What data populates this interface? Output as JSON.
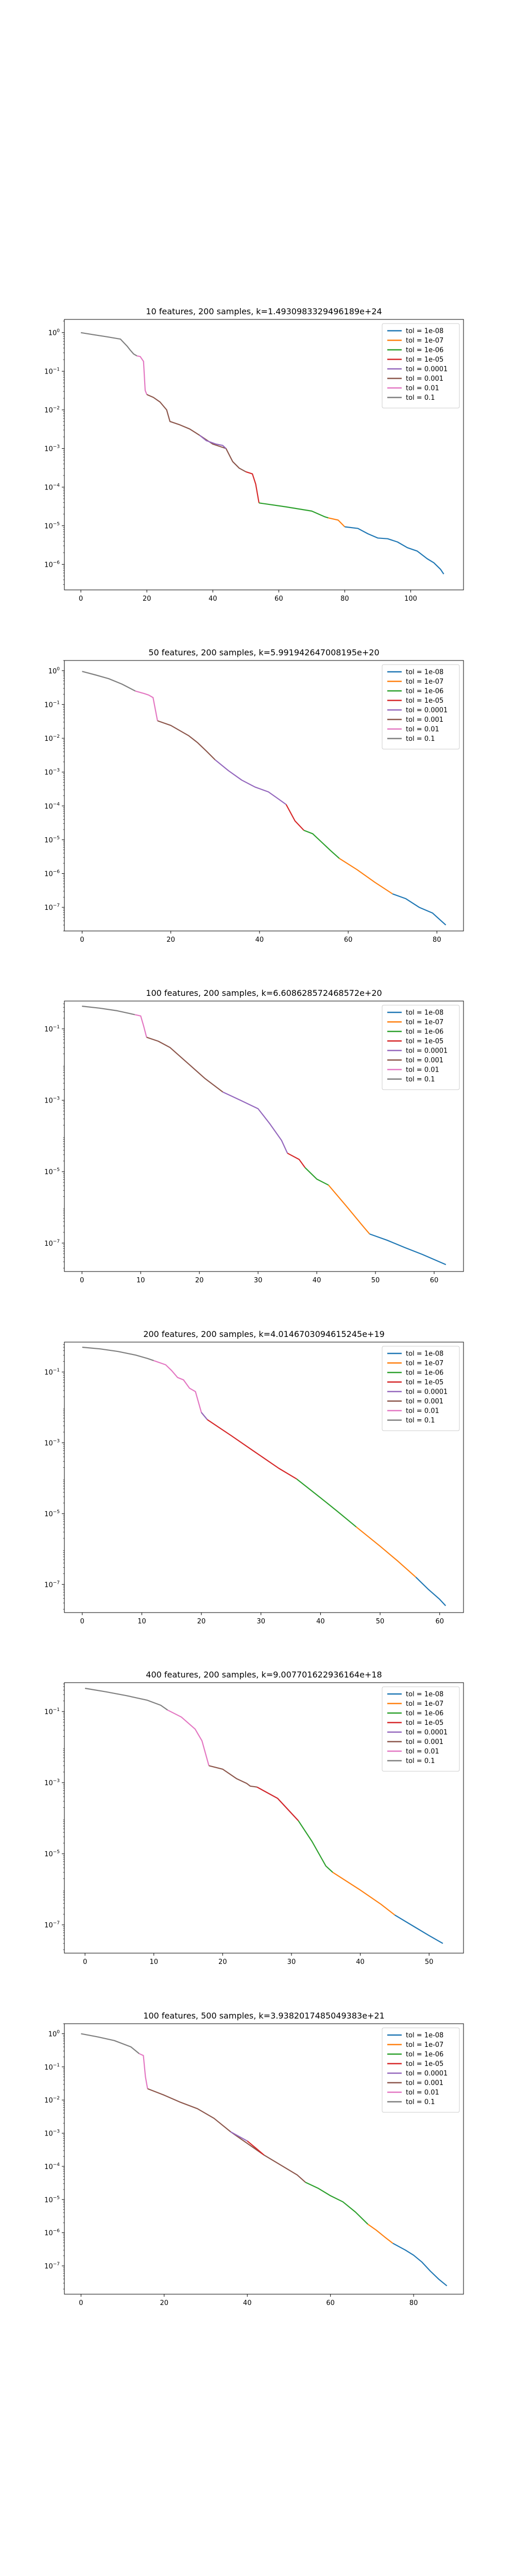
{
  "figure": {
    "legend_placement": "top-right",
    "y_scale": "log",
    "grid": false,
    "tol_colors": [
      "#1f77b4",
      "#ff7f0e",
      "#2ca02c",
      "#d62728",
      "#9467bd",
      "#8c564b",
      "#e377c2",
      "#7f7f7f"
    ]
  },
  "chart_data": [
    {
      "type": "line",
      "title": "10 features, 200 samples, k=1.4930983329496189e+24",
      "xlabel": "",
      "ylabel": "",
      "xlim": [
        -5,
        116
      ],
      "xticks": [
        0,
        20,
        40,
        60,
        80,
        100
      ],
      "xtick_labels": [
        "0",
        "20",
        "40",
        "60",
        "80",
        "100"
      ],
      "ylim": [
        2.18e-07,
        2.2
      ],
      "yticks": [
        1,
        0.1,
        0.01,
        0.001,
        0.0001,
        1e-05,
        1e-06
      ],
      "ytick_labels": [
        "10^0",
        "10^-1",
        "10^-2",
        "10^-3",
        "10^-4",
        "10^-5",
        "10^-6"
      ],
      "series": [
        {
          "name": "tol = 1e-08",
          "x": [
            80,
            84,
            87,
            90,
            93,
            96,
            99,
            102,
            105,
            107,
            109,
            110
          ],
          "y": [
            9.4e-06,
            8.5e-06,
            6.2e-06,
            4.8e-06,
            4.6e-06,
            3.8e-06,
            2.7e-06,
            2.2e-06,
            1.4e-06,
            1.1e-06,
            7.5e-07,
            5.6e-07
          ]
        },
        {
          "name": "tol = 1e-07",
          "x": [
            75,
            78,
            80
          ],
          "y": [
            1.6e-05,
            1.4e-05,
            9.4e-06
          ]
        },
        {
          "name": "tol = 1e-06",
          "x": [
            54,
            62,
            70,
            74,
            75
          ],
          "y": [
            3.9e-05,
            3.1e-05,
            2.4e-05,
            1.7e-05,
            1.6e-05
          ]
        },
        {
          "name": "tol = 1e-05",
          "x": [
            50,
            52,
            53,
            54
          ],
          "y": [
            0.00025,
            0.00022,
            0.00012,
            3.9e-05
          ]
        },
        {
          "name": "tol = 0.0001",
          "x": [
            36,
            38,
            41,
            43,
            44
          ],
          "y": [
            0.0022,
            0.0016,
            0.0013,
            0.0012,
            0.001
          ]
        },
        {
          "name": "tol = 0.001",
          "x": [
            20,
            22,
            24,
            26,
            27,
            30,
            33,
            36,
            40,
            44,
            46,
            48,
            50
          ],
          "y": [
            0.025,
            0.021,
            0.016,
            0.01,
            0.005,
            0.0041,
            0.0032,
            0.0022,
            0.0013,
            0.001,
            0.00046,
            0.00031,
            0.00025
          ]
        },
        {
          "name": "tol = 0.01",
          "x": [
            17,
            18,
            19,
            19.5,
            20
          ],
          "y": [
            0.25,
            0.24,
            0.18,
            0.032,
            0.025
          ]
        },
        {
          "name": "tol = 0.1",
          "x": [
            0,
            4,
            8,
            12,
            14,
            15,
            16,
            17
          ],
          "y": [
            1.0,
            0.88,
            0.78,
            0.68,
            0.45,
            0.35,
            0.28,
            0.25
          ]
        }
      ]
    },
    {
      "type": "line",
      "title": "50 features, 200 samples, k=5.991942647008195e+20",
      "xlabel": "",
      "ylabel": "",
      "xlim": [
        -4,
        86
      ],
      "xticks": [
        0,
        20,
        40,
        60,
        80
      ],
      "xtick_labels": [
        "0",
        "20",
        "40",
        "60",
        "80"
      ],
      "ylim": [
        2e-08,
        2.0
      ],
      "yticks": [
        1,
        0.1,
        0.01,
        0.001,
        0.0001,
        1e-05,
        1e-06,
        1e-07
      ],
      "ytick_labels": [
        "10^0",
        "10^-1",
        "10^-2",
        "10^-3",
        "10^-4",
        "10^-5",
        "10^-6",
        "10^-7"
      ],
      "series": [
        {
          "name": "tol = 1e-08",
          "x": [
            70,
            73,
            76,
            79,
            82
          ],
          "y": [
            2.5e-07,
            1.8e-07,
            1e-07,
            6.8e-08,
            3e-08
          ]
        },
        {
          "name": "tol = 1e-07",
          "x": [
            58,
            62,
            66,
            70
          ],
          "y": [
            2.8e-06,
            1.3e-06,
            5.5e-07,
            2.5e-07
          ]
        },
        {
          "name": "tol = 1e-06",
          "x": [
            50,
            52,
            54,
            56,
            58
          ],
          "y": [
            1.9e-05,
            1.5e-05,
            8.5e-06,
            4.8e-06,
            2.8e-06
          ]
        },
        {
          "name": "tol = 1e-05",
          "x": [
            46,
            48,
            50
          ],
          "y": [
            0.00011,
            3.6e-05,
            1.9e-05
          ]
        },
        {
          "name": "tol = 0.0001",
          "x": [
            30,
            33,
            36,
            39,
            42,
            44,
            46
          ],
          "y": [
            0.0023,
            0.0011,
            0.00058,
            0.00036,
            0.00026,
            0.00017,
            0.00011
          ]
        },
        {
          "name": "tol = 0.001",
          "x": [
            17,
            20,
            22,
            24,
            26,
            28,
            30
          ],
          "y": [
            0.033,
            0.024,
            0.017,
            0.012,
            0.0075,
            0.0042,
            0.0023
          ]
        },
        {
          "name": "tol = 0.01",
          "x": [
            12,
            14,
            15,
            16,
            17
          ],
          "y": [
            0.25,
            0.21,
            0.19,
            0.16,
            0.033
          ]
        },
        {
          "name": "tol = 0.1",
          "x": [
            0,
            3,
            6,
            9,
            12
          ],
          "y": [
            0.95,
            0.75,
            0.58,
            0.4,
            0.25
          ]
        }
      ]
    },
    {
      "type": "line",
      "title": "100 features, 200 samples, k=6.608628572468572e+20",
      "xlabel": "",
      "ylabel": "",
      "xlim": [
        -3,
        65
      ],
      "xticks": [
        0,
        10,
        20,
        30,
        40,
        50,
        60
      ],
      "xtick_labels": [
        "0",
        "10",
        "20",
        "30",
        "40",
        "50",
        "60"
      ],
      "ylim": [
        1.6e-08,
        0.6
      ],
      "yticks": [
        0.1,
        0.001,
        1e-05,
        1e-07
      ],
      "ytick_labels": [
        "10^-1",
        "10^-3",
        "10^-5",
        "10^-7"
      ],
      "series": [
        {
          "name": "tol = 1e-08",
          "x": [
            49,
            52,
            55,
            58,
            62
          ],
          "y": [
            1.8e-07,
            1.2e-07,
            7.5e-08,
            4.8e-08,
            2.5e-08
          ]
        },
        {
          "name": "tol = 1e-07",
          "x": [
            42,
            45,
            48,
            49
          ],
          "y": [
            4.2e-06,
            1.1e-06,
            2.8e-07,
            1.8e-07
          ]
        },
        {
          "name": "tol = 1e-06",
          "x": [
            38,
            40,
            42
          ],
          "y": [
            1.3e-05,
            6.2e-06,
            4.2e-06
          ]
        },
        {
          "name": "tol = 1e-05",
          "x": [
            35,
            37,
            38
          ],
          "y": [
            3.3e-05,
            2.2e-05,
            1.3e-05
          ]
        },
        {
          "name": "tol = 0.0001",
          "x": [
            24,
            27,
            30,
            32,
            34,
            35
          ],
          "y": [
            0.0017,
            0.001,
            0.00058,
            0.00022,
            7.5e-05,
            3.3e-05
          ]
        },
        {
          "name": "tol = 0.001",
          "x": [
            11,
            13,
            15,
            18,
            21,
            24
          ],
          "y": [
            0.058,
            0.045,
            0.03,
            0.011,
            0.004,
            0.0017
          ]
        },
        {
          "name": "tol = 0.01",
          "x": [
            9,
            10,
            10.5,
            11
          ],
          "y": [
            0.25,
            0.23,
            0.12,
            0.058
          ]
        },
        {
          "name": "tol = 0.1",
          "x": [
            0,
            3,
            6,
            9
          ],
          "y": [
            0.43,
            0.38,
            0.32,
            0.25
          ]
        }
      ]
    },
    {
      "type": "line",
      "title": "200 features, 200 samples, k=4.0146703094615245e+19",
      "xlabel": "",
      "ylabel": "",
      "xlim": [
        -3,
        64
      ],
      "xticks": [
        0,
        10,
        20,
        30,
        40,
        50,
        60
      ],
      "xtick_labels": [
        "0",
        "10",
        "20",
        "30",
        "40",
        "50",
        "60"
      ],
      "ylim": [
        1.6e-08,
        0.7
      ],
      "yticks": [
        0.1,
        0.001,
        1e-05,
        1e-07
      ],
      "ytick_labels": [
        "10^-1",
        "10^-3",
        "10^-5",
        "10^-7"
      ],
      "series": [
        {
          "name": "tol = 1e-08",
          "x": [
            56,
            58,
            60,
            61
          ],
          "y": [
            1.6e-07,
            7.5e-08,
            3.8e-08,
            2.5e-08
          ]
        },
        {
          "name": "tol = 1e-07",
          "x": [
            46,
            50,
            53,
            56
          ],
          "y": [
            4.2e-06,
            1.2e-06,
            4.5e-07,
            1.6e-07
          ]
        },
        {
          "name": "tol = 1e-06",
          "x": [
            36,
            40,
            43,
            46
          ],
          "y": [
            9.5e-05,
            2.8e-05,
            1.1e-05,
            4.2e-06
          ]
        },
        {
          "name": "tol = 1e-05",
          "x": [
            21,
            25,
            29,
            33,
            36
          ],
          "y": [
            0.0045,
            0.0016,
            0.00055,
            0.00019,
            9.5e-05
          ]
        },
        {
          "name": "tol = 0.0001",
          "x": [
            20,
            21
          ],
          "y": [
            0.0072,
            0.0045
          ]
        },
        {
          "name": "tol = 0.001",
          "x": [
            20,
            21
          ],
          "y": [
            0.0072,
            0.0045
          ]
        },
        {
          "name": "tol = 0.01",
          "x": [
            12,
            14,
            15,
            16,
            17,
            18,
            19,
            20
          ],
          "y": [
            0.21,
            0.16,
            0.11,
            0.07,
            0.06,
            0.035,
            0.028,
            0.0072
          ]
        },
        {
          "name": "tol = 0.1",
          "x": [
            0,
            3,
            6,
            9,
            11,
            12
          ],
          "y": [
            0.5,
            0.45,
            0.38,
            0.3,
            0.24,
            0.21
          ]
        }
      ]
    },
    {
      "type": "line",
      "title": "400 features, 200 samples, k=9.007701622936164e+18",
      "xlabel": "",
      "ylabel": "",
      "xlim": [
        -3,
        55
      ],
      "xticks": [
        0,
        10,
        20,
        30,
        40,
        50
      ],
      "xtick_labels": [
        "0",
        "10",
        "20",
        "30",
        "40",
        "50"
      ],
      "ylim": [
        1.6e-08,
        0.65
      ],
      "yticks": [
        0.1,
        0.001,
        1e-05,
        1e-07
      ],
      "ytick_labels": [
        "10^-1",
        "10^-3",
        "10^-5",
        "10^-7"
      ],
      "series": [
        {
          "name": "tol = 1e-08",
          "x": [
            45,
            48,
            50,
            52
          ],
          "y": [
            1.9e-07,
            8.5e-08,
            5e-08,
            3e-08
          ]
        },
        {
          "name": "tol = 1e-07",
          "x": [
            36,
            40,
            43,
            45
          ],
          "y": [
            3e-06,
            9.5e-07,
            3.8e-07,
            1.9e-07
          ]
        },
        {
          "name": "tol = 1e-06",
          "x": [
            31,
            33,
            35,
            36
          ],
          "y": [
            8.5e-05,
            2.2e-05,
            4.5e-06,
            3e-06
          ]
        },
        {
          "name": "tol = 1e-05",
          "x": [
            25,
            28,
            31
          ],
          "y": [
            0.00075,
            0.00036,
            8.5e-05
          ]
        },
        {
          "name": "tol = 0.0001",
          "x": [
            25,
            28,
            31
          ],
          "y": [
            0.00075,
            0.00036,
            8.5e-05
          ]
        },
        {
          "name": "tol = 0.001",
          "x": [
            18,
            20,
            22,
            23.5,
            24,
            25
          ],
          "y": [
            0.003,
            0.0024,
            0.0013,
            0.00095,
            0.0008,
            0.00075
          ]
        },
        {
          "name": "tol = 0.01",
          "x": [
            12,
            14,
            16,
            17,
            18
          ],
          "y": [
            0.11,
            0.07,
            0.032,
            0.015,
            0.003
          ]
        },
        {
          "name": "tol = 0.1",
          "x": [
            0,
            3,
            6,
            9,
            11,
            12
          ],
          "y": [
            0.45,
            0.36,
            0.28,
            0.21,
            0.15,
            0.11
          ]
        }
      ]
    },
    {
      "type": "line",
      "title": "100 features, 500 samples, k=3.9382017485049383e+21",
      "xlabel": "",
      "ylabel": "",
      "xlim": [
        -4,
        92
      ],
      "xticks": [
        0,
        20,
        40,
        60,
        80
      ],
      "xtick_labels": [
        "0",
        "20",
        "40",
        "60",
        "80"
      ],
      "ylim": [
        1.4e-08,
        2.0
      ],
      "yticks": [
        1,
        0.1,
        0.01,
        0.001,
        0.0001,
        1e-05,
        1e-06,
        1e-07
      ],
      "ytick_labels": [
        "10^0",
        "10^-1",
        "10^-2",
        "10^-3",
        "10^-4",
        "10^-5",
        "10^-6",
        "10^-7"
      ],
      "series": [
        {
          "name": "tol = 1e-08",
          "x": [
            75,
            78,
            80,
            82,
            84,
            86,
            88
          ],
          "y": [
            4.8e-07,
            3e-07,
            2.1e-07,
            1.3e-07,
            7e-08,
            4e-08,
            2.5e-08
          ]
        },
        {
          "name": "tol = 1e-07",
          "x": [
            69,
            71,
            73,
            75
          ],
          "y": [
            1.8e-06,
            1.2e-06,
            7.5e-07,
            4.8e-07
          ]
        },
        {
          "name": "tol = 1e-06",
          "x": [
            54,
            57,
            60,
            63,
            66,
            69
          ],
          "y": [
            3.3e-05,
            2.2e-05,
            1.3e-05,
            8.5e-06,
            4.2e-06,
            1.8e-06
          ]
        },
        {
          "name": "tol = 1e-05",
          "x": [
            40,
            42,
            44
          ],
          "y": [
            0.00058,
            0.00036,
            0.00022
          ]
        },
        {
          "name": "tol = 0.0001",
          "x": [
            36,
            38,
            40
          ],
          "y": [
            0.0011,
            0.0008,
            0.00058
          ]
        },
        {
          "name": "tol = 0.001",
          "x": [
            16,
            20,
            24,
            28,
            32,
            36,
            44,
            48,
            52,
            54
          ],
          "y": [
            0.022,
            0.014,
            0.0085,
            0.0055,
            0.0028,
            0.0011,
            0.00022,
            0.00011,
            5.5e-05,
            3.3e-05
          ]
        },
        {
          "name": "tol = 0.01",
          "x": [
            14,
            15,
            15.5,
            16
          ],
          "y": [
            0.25,
            0.22,
            0.05,
            0.022
          ]
        },
        {
          "name": "tol = 0.1",
          "x": [
            0,
            4,
            8,
            12,
            14
          ],
          "y": [
            1.0,
            0.8,
            0.62,
            0.4,
            0.25
          ]
        }
      ]
    }
  ]
}
